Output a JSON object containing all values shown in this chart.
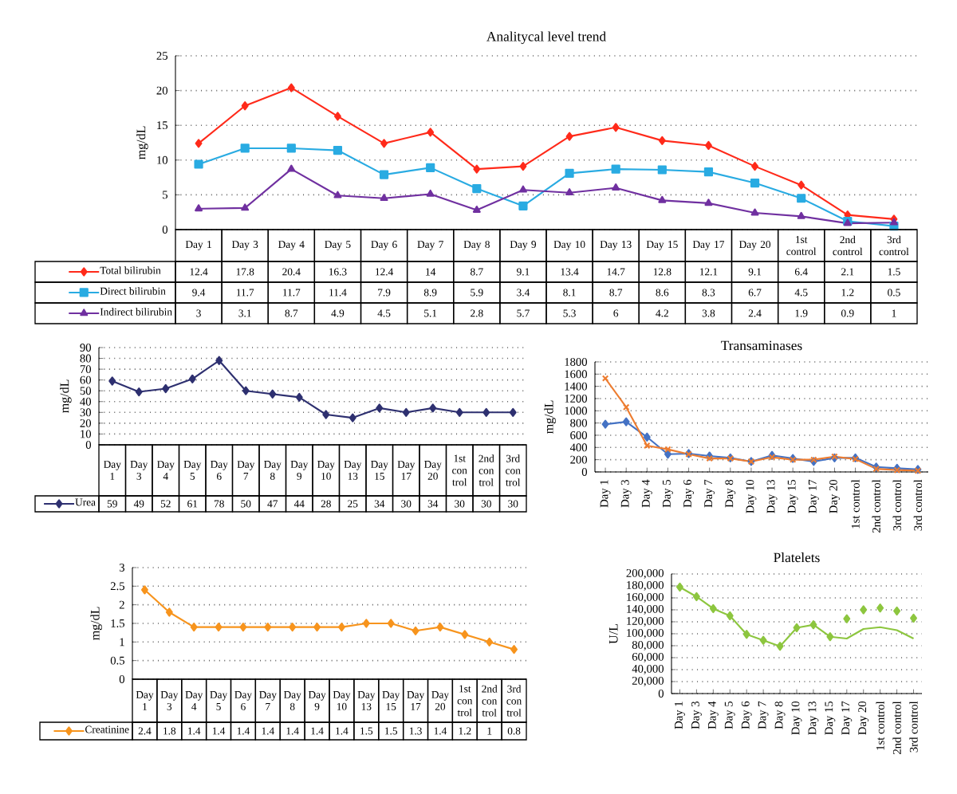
{
  "chart_data": [
    {
      "type": "line",
      "title": "Analitycal level trend",
      "ylabel": "mg/dL",
      "categories": [
        "Day 1",
        "Day 3",
        "Day 4",
        "Day 5",
        "Day 6",
        "Day 7",
        "Day 8",
        "Day 9",
        "Day 10",
        "Day 13",
        "Day 15",
        "Day 17",
        "Day 20",
        "1st control",
        "2nd control",
        "3rd control"
      ],
      "series": [
        {
          "name": "Total bilirubin",
          "color": "#ff2a1a",
          "marker": "diamond",
          "values": [
            12.4,
            17.8,
            20.4,
            16.3,
            12.4,
            14,
            8.7,
            9.1,
            13.4,
            14.7,
            12.8,
            12.1,
            9.1,
            6.4,
            2.1,
            1.5
          ]
        },
        {
          "name": "Direct bilirubin",
          "color": "#29abe2",
          "marker": "square",
          "values": [
            9.4,
            11.7,
            11.7,
            11.4,
            7.9,
            8.9,
            5.9,
            3.4,
            8.1,
            8.7,
            8.6,
            8.3,
            6.7,
            4.5,
            1.2,
            0.5
          ]
        },
        {
          "name": "Indirect bilirubin",
          "color": "#7030a0",
          "marker": "triangle",
          "values": [
            3,
            3.1,
            8.7,
            4.9,
            4.5,
            5.1,
            2.8,
            5.7,
            5.3,
            6,
            4.2,
            3.8,
            2.4,
            1.9,
            0.9,
            1
          ]
        }
      ],
      "ylim": [
        0,
        25
      ],
      "yticks": [
        0,
        5,
        10,
        15,
        20,
        25
      ],
      "grid": "y",
      "data_labels": true,
      "legend": "bottom"
    },
    {
      "type": "line",
      "ylabel": "mg/dL",
      "categories": [
        "Day 1",
        "Day 3",
        "Day 4",
        "Day 5",
        "Day 6",
        "Day 7",
        "Day 8",
        "Day 9",
        "Day 10",
        "Day 13",
        "Day 15",
        "Day 17",
        "Day 20",
        "1st con trol",
        "2nd con trol",
        "3rd con trol"
      ],
      "series": [
        {
          "name": "Urea",
          "color": "#2e3070",
          "marker": "diamond",
          "values": [
            59,
            49,
            52,
            61,
            78,
            50,
            47,
            44,
            28,
            25,
            34,
            30,
            34,
            30,
            30,
            30
          ]
        }
      ],
      "ylim": [
        0,
        90
      ],
      "yticks": [
        0,
        10,
        20,
        30,
        40,
        50,
        60,
        70,
        80,
        90
      ],
      "grid": "y",
      "data_labels": true,
      "legend": "bottom"
    },
    {
      "type": "line",
      "title": "Transaminases",
      "ylabel": "mg/dL",
      "categories": [
        "Day 1",
        "Day 3",
        "Day 4",
        "Day 5",
        "Day 6",
        "Day 7",
        "Day 8",
        "Day 10",
        "Day 13",
        "Day 15",
        "Day 17",
        "Day 20",
        "1st control",
        "2nd control",
        "3rd control",
        "3rd control"
      ],
      "series": [
        {
          "color": "#4472c4",
          "marker": "diamond",
          "values": [
            780,
            820,
            570,
            290,
            300,
            260,
            230,
            170,
            270,
            220,
            170,
            230,
            230,
            80,
            60,
            40
          ]
        },
        {
          "color": "#ed7d31",
          "marker": "cross",
          "values": [
            1530,
            1060,
            430,
            370,
            290,
            220,
            220,
            170,
            240,
            200,
            200,
            250,
            210,
            50,
            30,
            20
          ]
        }
      ],
      "ylim": [
        0,
        1800
      ],
      "yticks": [
        0,
        200,
        400,
        600,
        800,
        1000,
        1200,
        1400,
        1600,
        1800
      ],
      "grid": "y"
    },
    {
      "type": "line",
      "ylabel": "mg/dL",
      "categories": [
        "Day 1",
        "Day 3",
        "Day 4",
        "Day 5",
        "Day 6",
        "Day 7",
        "Day 8",
        "Day 9",
        "Day 10",
        "Day 13",
        "Day 15",
        "Day 17",
        "Day 20",
        "1st con trol",
        "2nd con trol",
        "3rd con trol"
      ],
      "series": [
        {
          "name": "Creatinine",
          "color": "#f7941d",
          "marker": "diamond",
          "values": [
            2.4,
            1.8,
            1.4,
            1.4,
            1.4,
            1.4,
            1.4,
            1.4,
            1.4,
            1.5,
            1.5,
            1.3,
            1.4,
            1.2,
            1,
            0.8
          ]
        }
      ],
      "ylim": [
        0,
        3
      ],
      "yticks": [
        0,
        0.5,
        1,
        1.5,
        2,
        2.5,
        3
      ],
      "grid": "y",
      "data_labels": true,
      "legend": "bottom"
    },
    {
      "type": "line",
      "title": "Platelets",
      "ylabel": "U/L",
      "categories": [
        "Day 1",
        "Day 3",
        "Day 4",
        "Day 5",
        "Day 6",
        "Day 7",
        "Day 8",
        "Day 10",
        "Day 13",
        "Day 15",
        "Day 17",
        "Day 20",
        "1st control",
        "2nd control",
        "3rd control"
      ],
      "series": [
        {
          "color": "#8dc63f",
          "marker": "diamond",
          "values": [
            178000,
            162000,
            142000,
            130000,
            99000,
            89000,
            79000,
            110000,
            115000,
            95000,
            null,
            null,
            null,
            null,
            null
          ]
        },
        {
          "type": "scatter",
          "color": "#8dc63f",
          "marker": "diamond",
          "values": [
            null,
            null,
            null,
            null,
            null,
            null,
            null,
            null,
            null,
            null,
            125000,
            140000,
            143000,
            138000,
            126000
          ]
        },
        {
          "color": "#8dc63f",
          "marker": "none",
          "values": [
            null,
            null,
            null,
            null,
            null,
            null,
            null,
            null,
            null,
            95000,
            92000,
            108000,
            111000,
            106000,
            92000
          ]
        }
      ],
      "ylim": [
        0,
        200000
      ],
      "yticks": [
        0,
        {
          "value": 20000,
          "label": "20,000"
        },
        {
          "value": 40000,
          "label": "40,000"
        },
        {
          "value": 60000,
          "label": "60,000"
        },
        {
          "value": 80000,
          "label": "80,000"
        },
        {
          "value": 100000,
          "label": "100,000"
        },
        {
          "value": 120000,
          "label": "120,000"
        },
        {
          "value": 140000,
          "label": "140,000"
        },
        {
          "value": 160000,
          "label": "160,000"
        },
        {
          "value": 180000,
          "label": "180,000"
        },
        {
          "value": 200000,
          "label": "200,000"
        }
      ],
      "grid": "y"
    }
  ]
}
